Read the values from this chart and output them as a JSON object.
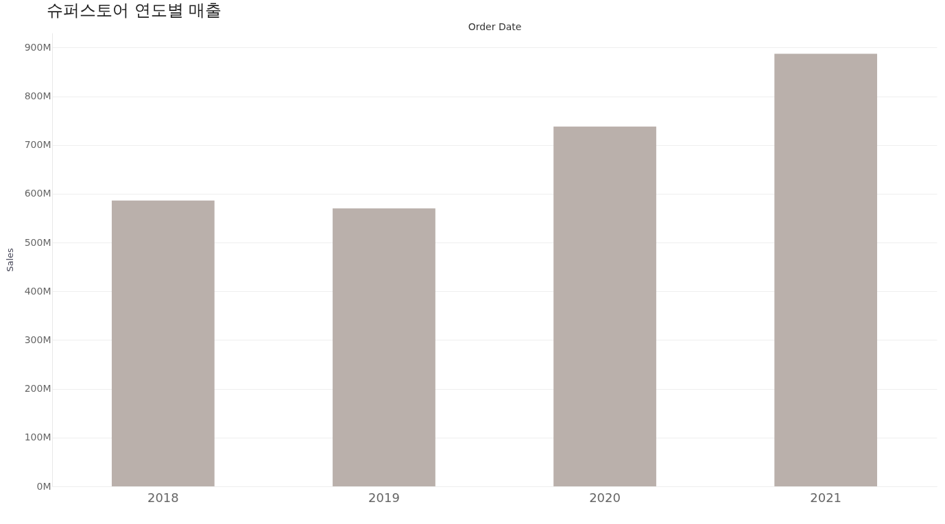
{
  "chart_data": {
    "type": "bar",
    "title": "슈퍼스토어 연도별 매출",
    "xlabel": "Order Date",
    "ylabel": "Sales",
    "categories": [
      "2018",
      "2019",
      "2020",
      "2021"
    ],
    "values": [
      586,
      570,
      738,
      887
    ],
    "color": "#bab0ab",
    "ylim": [
      0,
      930
    ],
    "yticks": [
      {
        "value": 0,
        "label": "0M"
      },
      {
        "value": 100,
        "label": "100M"
      },
      {
        "value": 200,
        "label": "200M"
      },
      {
        "value": 300,
        "label": "300M"
      },
      {
        "value": 400,
        "label": "400M"
      },
      {
        "value": 500,
        "label": "500M"
      },
      {
        "value": 600,
        "label": "600M"
      },
      {
        "value": 700,
        "label": "700M"
      },
      {
        "value": 800,
        "label": "800M"
      },
      {
        "value": 900,
        "label": "900M"
      }
    ],
    "grid": "y"
  }
}
